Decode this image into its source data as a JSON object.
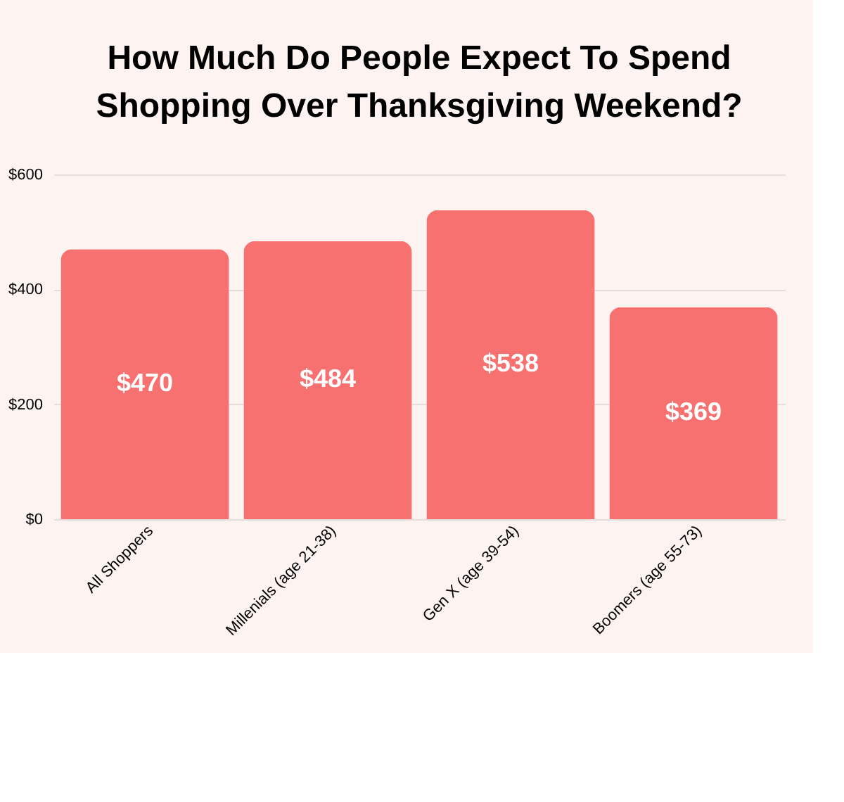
{
  "chart_data": {
    "type": "bar",
    "title": "How Much Do People Expect To Spend Shopping Over Thanksgiving Weekend?",
    "categories": [
      "All Shoppers",
      "Millenials (age 21-38)",
      "Gen X (age 39-54)",
      "Boomers (age 55-73)"
    ],
    "values": [
      470,
      484,
      538,
      369
    ],
    "value_labels": [
      "$470",
      "$484",
      "$538",
      "$369"
    ],
    "color": "#f87171",
    "ylim": [
      0,
      600
    ],
    "yticks": [
      {
        "value": 0,
        "label": "$0"
      },
      {
        "value": 200,
        "label": "$200"
      },
      {
        "value": 400,
        "label": "$400"
      },
      {
        "value": 600,
        "label": "$600"
      }
    ],
    "grid": "y"
  }
}
